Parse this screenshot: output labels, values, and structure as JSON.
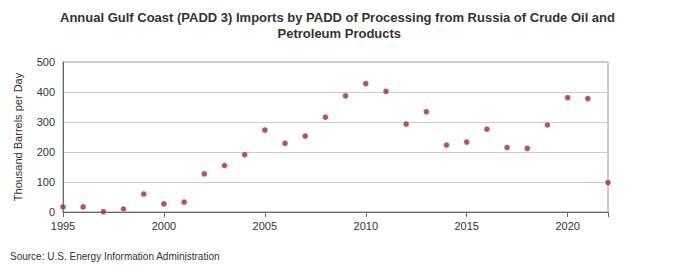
{
  "chart_data": {
    "type": "scatter",
    "title": "Annual Gulf Coast (PADD 3) Imports by PADD of Processing from Russia of Crude Oil and Petroleum Products",
    "y_label": "Thousand Barrels per Day",
    "annotation": "Source: U.S. Energy Information Administration",
    "x": [
      1995,
      1996,
      1997,
      1998,
      1999,
      2000,
      2001,
      2002,
      2003,
      2004,
      2005,
      2006,
      2007,
      2008,
      2009,
      2010,
      2011,
      2012,
      2013,
      2014,
      2015,
      2016,
      2017,
      2018,
      2019,
      2020,
      2021,
      2022
    ],
    "values": [
      17,
      17,
      1,
      10,
      60,
      27,
      33,
      127,
      155,
      191,
      273,
      229,
      253,
      316,
      387,
      428,
      402,
      293,
      334,
      223,
      233,
      276,
      215,
      212,
      290,
      381,
      378,
      98
    ],
    "color": "#a52a2a",
    "marker": "circle",
    "xlim": [
      1995,
      2022
    ],
    "xticks": [
      1995,
      2000,
      2005,
      2010,
      2015,
      2020
    ],
    "ylim": [
      0,
      500
    ],
    "yticks": [
      0,
      100,
      200,
      300,
      400,
      500
    ],
    "grid": true
  }
}
